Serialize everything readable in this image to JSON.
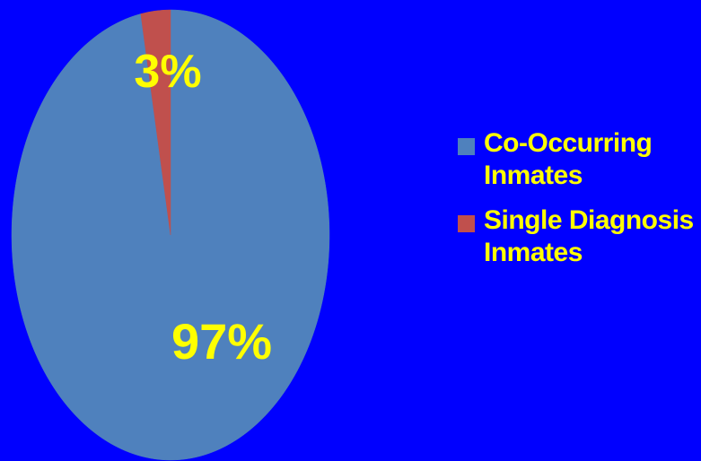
{
  "chart_data": {
    "type": "pie",
    "categories": [
      "Co-Occurring Inmates",
      "Single Diagnosis Inmates"
    ],
    "values": [
      97,
      3
    ],
    "data_labels": [
      "97%",
      "3%"
    ],
    "colors": [
      "#4F81BD",
      "#C0504D"
    ],
    "label_color": "#FFFF00",
    "legend": {
      "position": "right",
      "items": [
        {
          "lines": [
            "Co-Occurring",
            "Inmates"
          ],
          "color": "#4F81BD"
        },
        {
          "lines": [
            "Single Diagnosis",
            "Inmates"
          ],
          "color": "#C0504D"
        }
      ]
    },
    "background": "#0000FF"
  }
}
